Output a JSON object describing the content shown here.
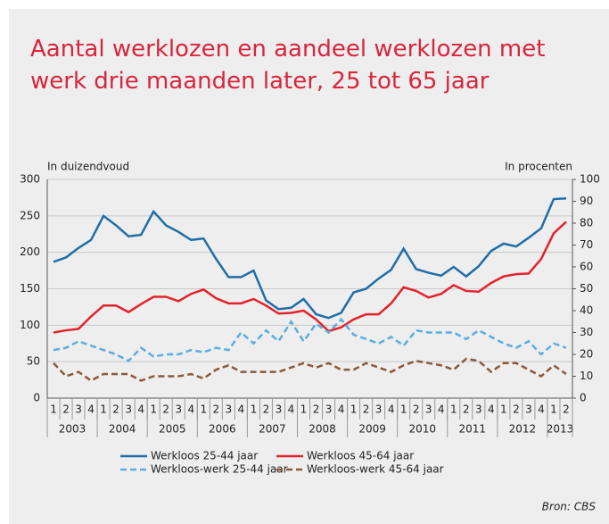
{
  "chart_data": {
    "type": "line",
    "title": "Aantal werklozen en aandeel werklozen met",
    "title_line2": "werk drie maanden later, 25 tot 65 jaar",
    "y_label": "In duizendvoud",
    "y2_label": "In procenten",
    "source": "Bron: CBS",
    "categories": [
      "1",
      "2",
      "3",
      "4",
      "1",
      "2",
      "3",
      "4",
      "1",
      "2",
      "3",
      "4",
      "1",
      "2",
      "3",
      "4",
      "1",
      "2",
      "3",
      "4",
      "1",
      "2",
      "3",
      "4",
      "1",
      "2",
      "3",
      "4",
      "1",
      "2",
      "3",
      "4",
      "1",
      "2",
      "3",
      "4",
      "1",
      "2",
      "3",
      "4",
      "1",
      "2"
    ],
    "years": [
      "2003",
      "2004",
      "2005",
      "2006",
      "2007",
      "2008",
      "2009",
      "2010",
      "2011",
      "2012",
      "2013"
    ],
    "ylim": [
      0,
      300
    ],
    "yticks": [
      0,
      50,
      100,
      150,
      200,
      250,
      300
    ],
    "y2lim": [
      0,
      100
    ],
    "y2ticks": [
      0,
      10,
      20,
      30,
      40,
      50,
      60,
      70,
      80,
      90,
      100
    ],
    "grid": true,
    "series": [
      {
        "name": "Werkloos  25-44 jaar",
        "color": "#1f6ea6",
        "dash": false,
        "values": [
          187,
          193,
          206,
          217,
          250,
          237,
          222,
          224,
          256,
          237,
          228,
          217,
          219,
          191,
          166,
          166,
          175,
          134,
          122,
          124,
          136,
          115,
          110,
          117,
          145,
          150,
          164,
          176,
          205,
          177,
          172,
          168,
          180,
          167,
          181,
          202,
          212,
          208,
          220,
          233,
          273,
          274
        ]
      },
      {
        "name": "Werkloos  45-64 jaar",
        "color": "#e3232c",
        "dash": false,
        "values": [
          90,
          93,
          95,
          112,
          127,
          127,
          118,
          129,
          139,
          139,
          133,
          143,
          149,
          137,
          130,
          130,
          136,
          127,
          116,
          117,
          120,
          108,
          92,
          97,
          108,
          115,
          115,
          130,
          152,
          147,
          138,
          143,
          155,
          147,
          146,
          158,
          167,
          170,
          171,
          191,
          226,
          242
        ]
      },
      {
        "name": "Werkloos-werk  25-44 jaar",
        "color": "#5aaee0",
        "dash": true,
        "axis": "y2",
        "values": [
          22,
          23,
          26,
          24,
          22,
          20,
          17,
          23,
          19,
          20,
          20,
          22,
          21,
          23,
          22,
          30,
          25,
          31,
          26,
          35,
          26,
          34,
          30,
          36,
          29,
          27,
          25,
          28,
          24,
          31,
          30,
          30,
          30,
          27,
          31,
          28,
          25,
          23,
          26,
          20,
          25,
          23
        ]
      },
      {
        "name": "Werkloos-werk  45-64 jaar",
        "color": "#8a5a3a",
        "dash": true,
        "axis": "y2",
        "values": [
          16,
          10,
          12,
          8,
          11,
          11,
          11,
          8,
          10,
          10,
          10,
          11,
          9,
          13,
          15,
          12,
          12,
          12,
          12,
          14,
          16,
          14,
          16,
          13,
          13,
          16,
          14,
          12,
          15,
          17,
          16,
          15,
          13,
          18,
          17,
          12,
          16,
          16,
          13,
          10,
          15,
          11
        ]
      }
    ]
  }
}
